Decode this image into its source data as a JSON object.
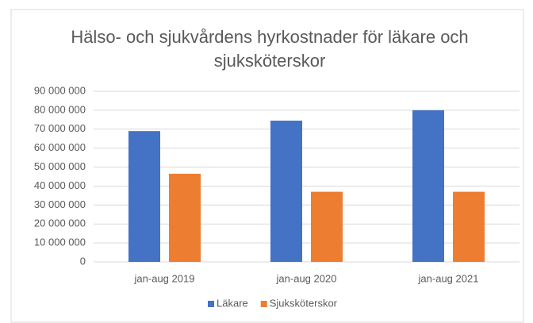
{
  "chart_data": {
    "type": "bar",
    "title": "Hälso- och sjukvårdens hyrkostnader för läkare och sjuksköterskor",
    "categories": [
      "jan-aug 2019",
      "jan-aug 2020",
      "jan-aug 2021"
    ],
    "series": [
      {
        "name": "Läkare",
        "color": "#4472c4",
        "values": [
          69000000,
          74500000,
          80000000
        ]
      },
      {
        "name": "Sjuksköterskor",
        "color": "#ed7d31",
        "values": [
          46500000,
          37000000,
          37000000
        ]
      }
    ],
    "ylim": [
      0,
      90000000
    ],
    "yticks": [
      0,
      {
        "value": 10000000,
        "label": "10 000 000"
      },
      {
        "value": 20000000,
        "label": "20 000 000"
      },
      {
        "value": 30000000,
        "label": "30 000 000"
      },
      {
        "value": 40000000,
        "label": "40 000 000"
      },
      {
        "value": 50000000,
        "label": "50 000 000"
      },
      {
        "value": 60000000,
        "label": "60 000 000"
      },
      {
        "value": 70000000,
        "label": "70 000 000"
      },
      {
        "value": 80000000,
        "label": "80 000 000"
      },
      {
        "value": 90000000,
        "label": "90 000 000"
      }
    ],
    "grid": true,
    "legend": "bottom"
  }
}
